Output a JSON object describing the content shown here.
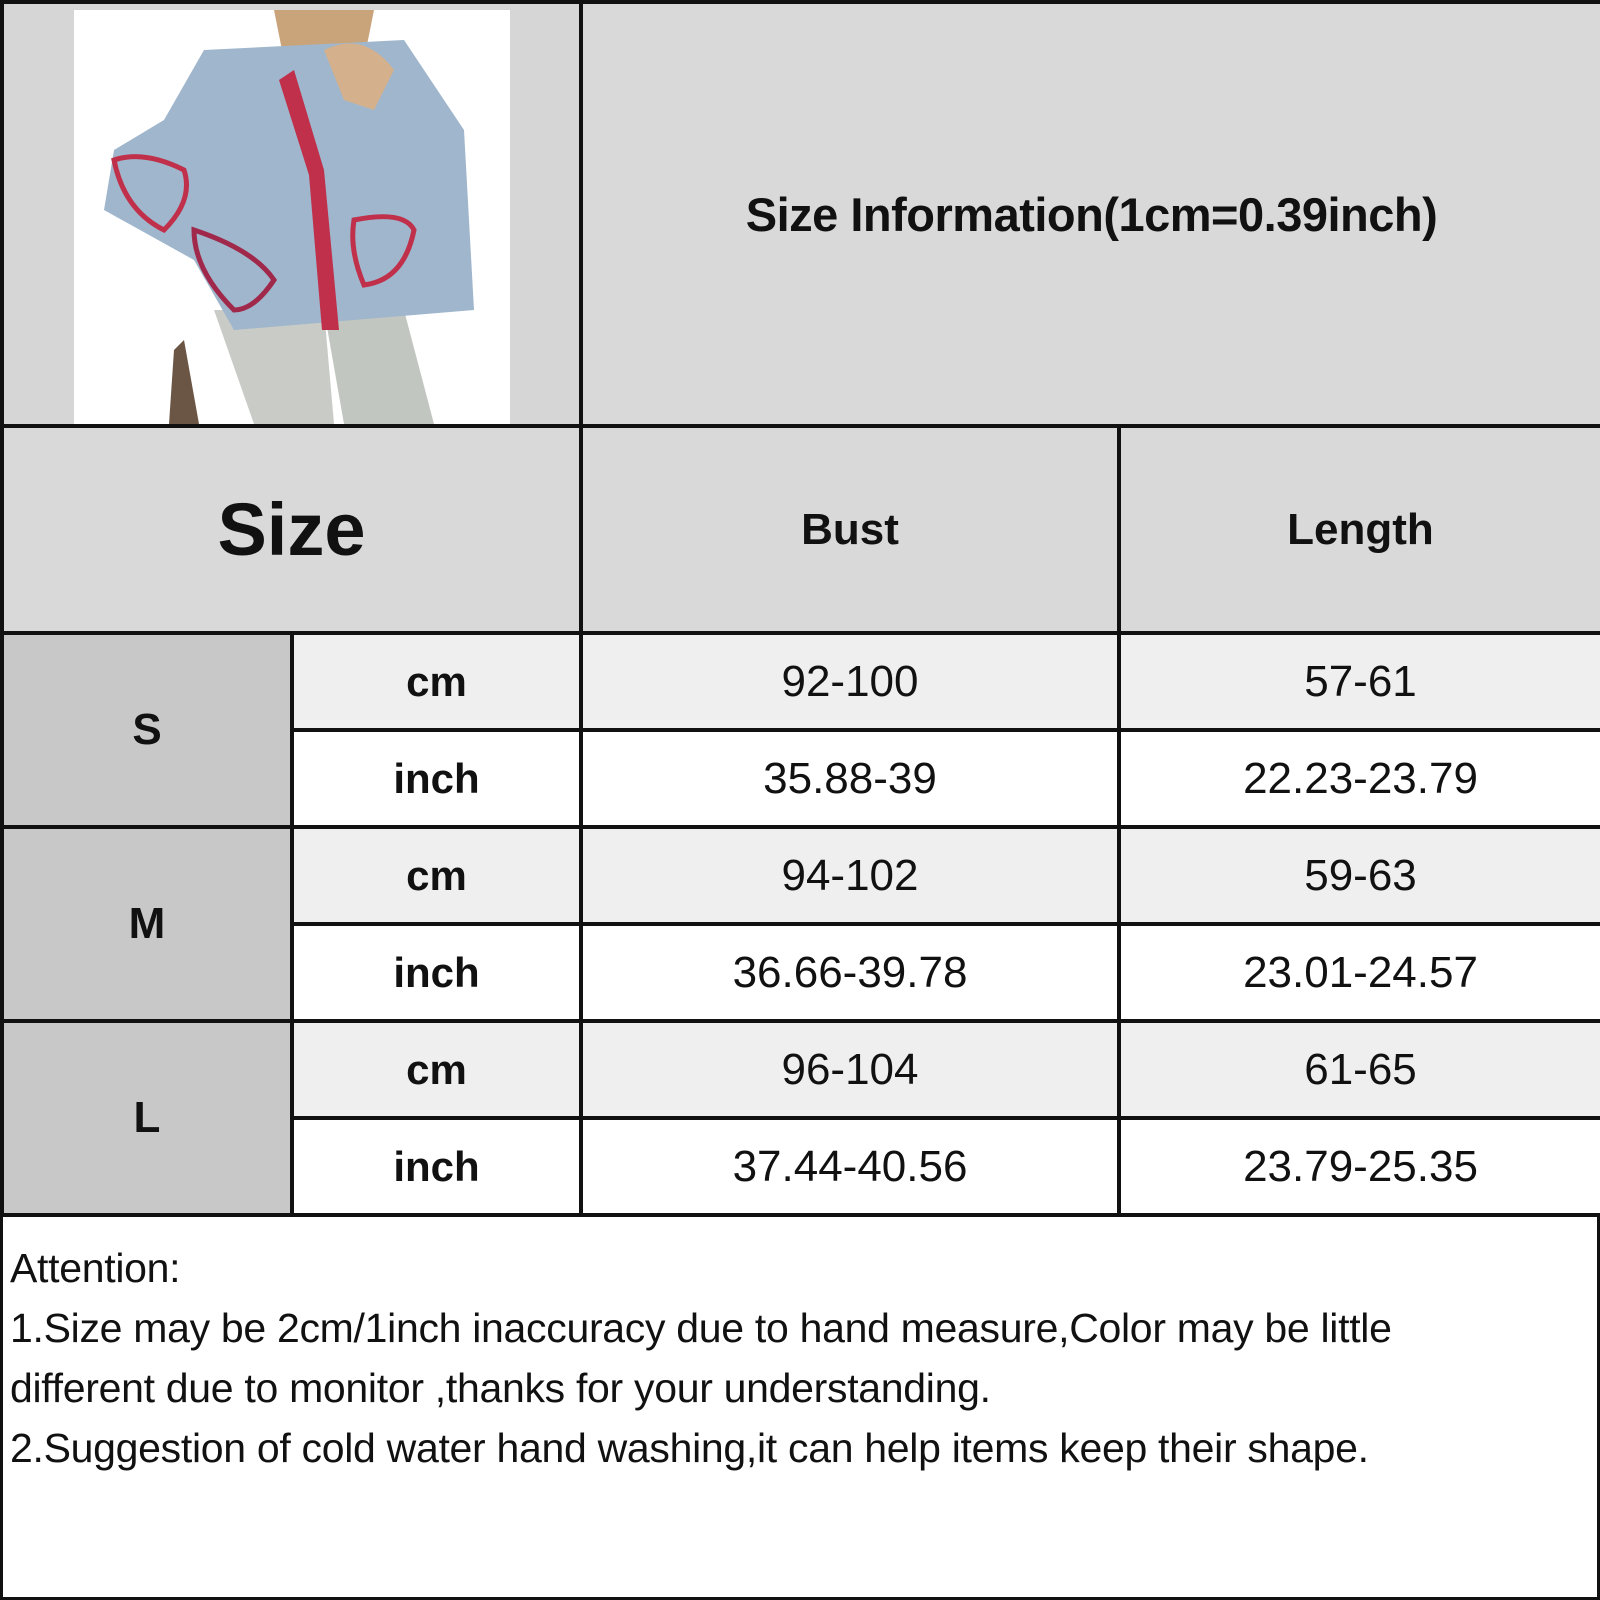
{
  "header": {
    "title": "Size Information(1cm=0.39inch)"
  },
  "product_image": {
    "description_icon": "product-photo-cardigan"
  },
  "table": {
    "columns": [
      "Size",
      "Bust",
      "Length"
    ],
    "rows": [
      {
        "size": "S",
        "cm": {
          "unit": "cm",
          "bust": "92-100",
          "length": "57-61"
        },
        "inch": {
          "unit": "inch",
          "bust": "35.88-39",
          "length": "22.23-23.79"
        }
      },
      {
        "size": "M",
        "cm": {
          "unit": "cm",
          "bust": "94-102",
          "length": "59-63"
        },
        "inch": {
          "unit": "inch",
          "bust": "36.66-39.78",
          "length": "23.01-24.57"
        }
      },
      {
        "size": "L",
        "cm": {
          "unit": "cm",
          "bust": "96-104",
          "length": "61-65"
        },
        "inch": {
          "unit": "inch",
          "bust": "37.44-40.56",
          "length": "23.79-25.35"
        }
      }
    ]
  },
  "notes": {
    "heading": "Attention:",
    "line1": "1.Size may be 2cm/1inch inaccuracy due to hand measure,Color may be little",
    "line2": "different due to monitor ,thanks for your understanding.",
    "line3": "2.Suggestion of cold water hand washing,it can help items keep their shape."
  },
  "colors": {
    "header_bg": "#d9d9d9",
    "size_cell_bg": "#c8c8c8",
    "cm_row_bg": "#efefef",
    "border": "#111111"
  }
}
